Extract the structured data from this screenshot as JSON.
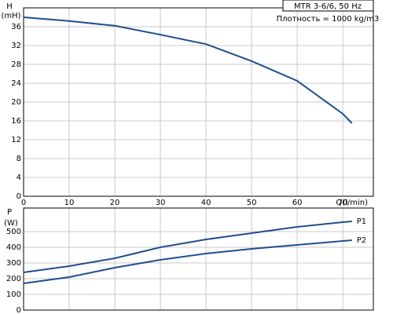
{
  "chart_data": [
    {
      "type": "line",
      "ylabel": "H",
      "yunit": "(mH)",
      "xlabel": "Q(l/min)",
      "annotations": [
        "MTR 3-6/6, 50 Hz",
        "Плотность = 1000 kg/m3"
      ],
      "x": [
        0,
        10,
        20,
        30,
        40,
        50,
        60,
        70,
        72
      ],
      "values": [
        38,
        37.2,
        36.2,
        34.3,
        32.3,
        28.7,
        24.5,
        17.5,
        15.5
      ],
      "color": "#1f4e8c",
      "xlim": [
        0,
        76.7
      ],
      "xticks": [
        0,
        10,
        20,
        30,
        40,
        50,
        60,
        70
      ],
      "ylim": [
        0,
        40
      ],
      "yticks": [
        0,
        4,
        8,
        12,
        16,
        20,
        24,
        28,
        32,
        36
      ],
      "grid": true
    },
    {
      "type": "line",
      "ylabel": "P",
      "yunit": "(W)",
      "x": [
        0,
        10,
        20,
        30,
        40,
        50,
        60,
        70,
        72
      ],
      "series": [
        {
          "name": "P1",
          "color": "#1f4e8c",
          "values": [
            240,
            280,
            330,
            400,
            450,
            490,
            530,
            560,
            565
          ]
        },
        {
          "name": "P2",
          "color": "#1f4e8c",
          "values": [
            170,
            210,
            270,
            320,
            360,
            390,
            415,
            440,
            445
          ]
        }
      ],
      "xlim": [
        0,
        76.7
      ],
      "ylim": [
        0,
        650
      ],
      "yticks": [
        0,
        100,
        200,
        300,
        400,
        500
      ],
      "grid": true
    }
  ]
}
